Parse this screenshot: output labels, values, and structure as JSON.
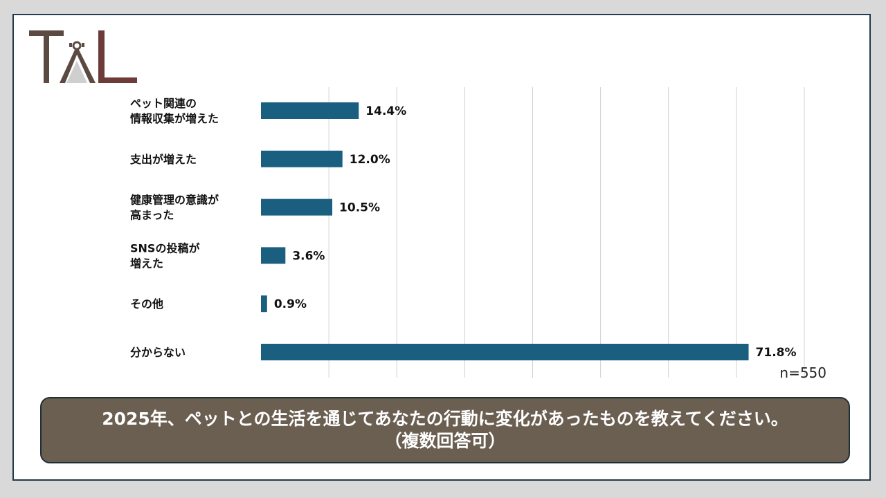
{
  "logo_text": "TAL",
  "colors": {
    "bar": "#1a5f80",
    "grid": "#d0d0d0",
    "question_bg": "#6b5f52",
    "logo_dark": "#5b4a42",
    "logo_red": "#6e3b3b"
  },
  "sample_size": "n=550",
  "question": {
    "line1": "2025年、ペットとの生活を通じてあなたの行動に変化があったものを教えてください。",
    "line2": "（複数回答可）"
  },
  "chart_data": {
    "type": "bar",
    "orientation": "horizontal",
    "categories": [
      [
        "ペット関連の",
        "情報収集が増えた"
      ],
      [
        "支出が増えた"
      ],
      [
        "健康管理の意識が",
        "高まった"
      ],
      [
        "SNSの投稿が",
        "増えた"
      ],
      [
        "その他"
      ],
      [
        "分からない"
      ]
    ],
    "values": [
      14.4,
      12.0,
      10.5,
      3.6,
      0.9,
      71.8
    ],
    "value_labels": [
      "14.4%",
      "12.0%",
      "10.5%",
      "3.6%",
      "0.9%",
      "71.8%"
    ],
    "xlim": [
      0,
      80
    ],
    "grid": true,
    "gridline_step": 10
  }
}
